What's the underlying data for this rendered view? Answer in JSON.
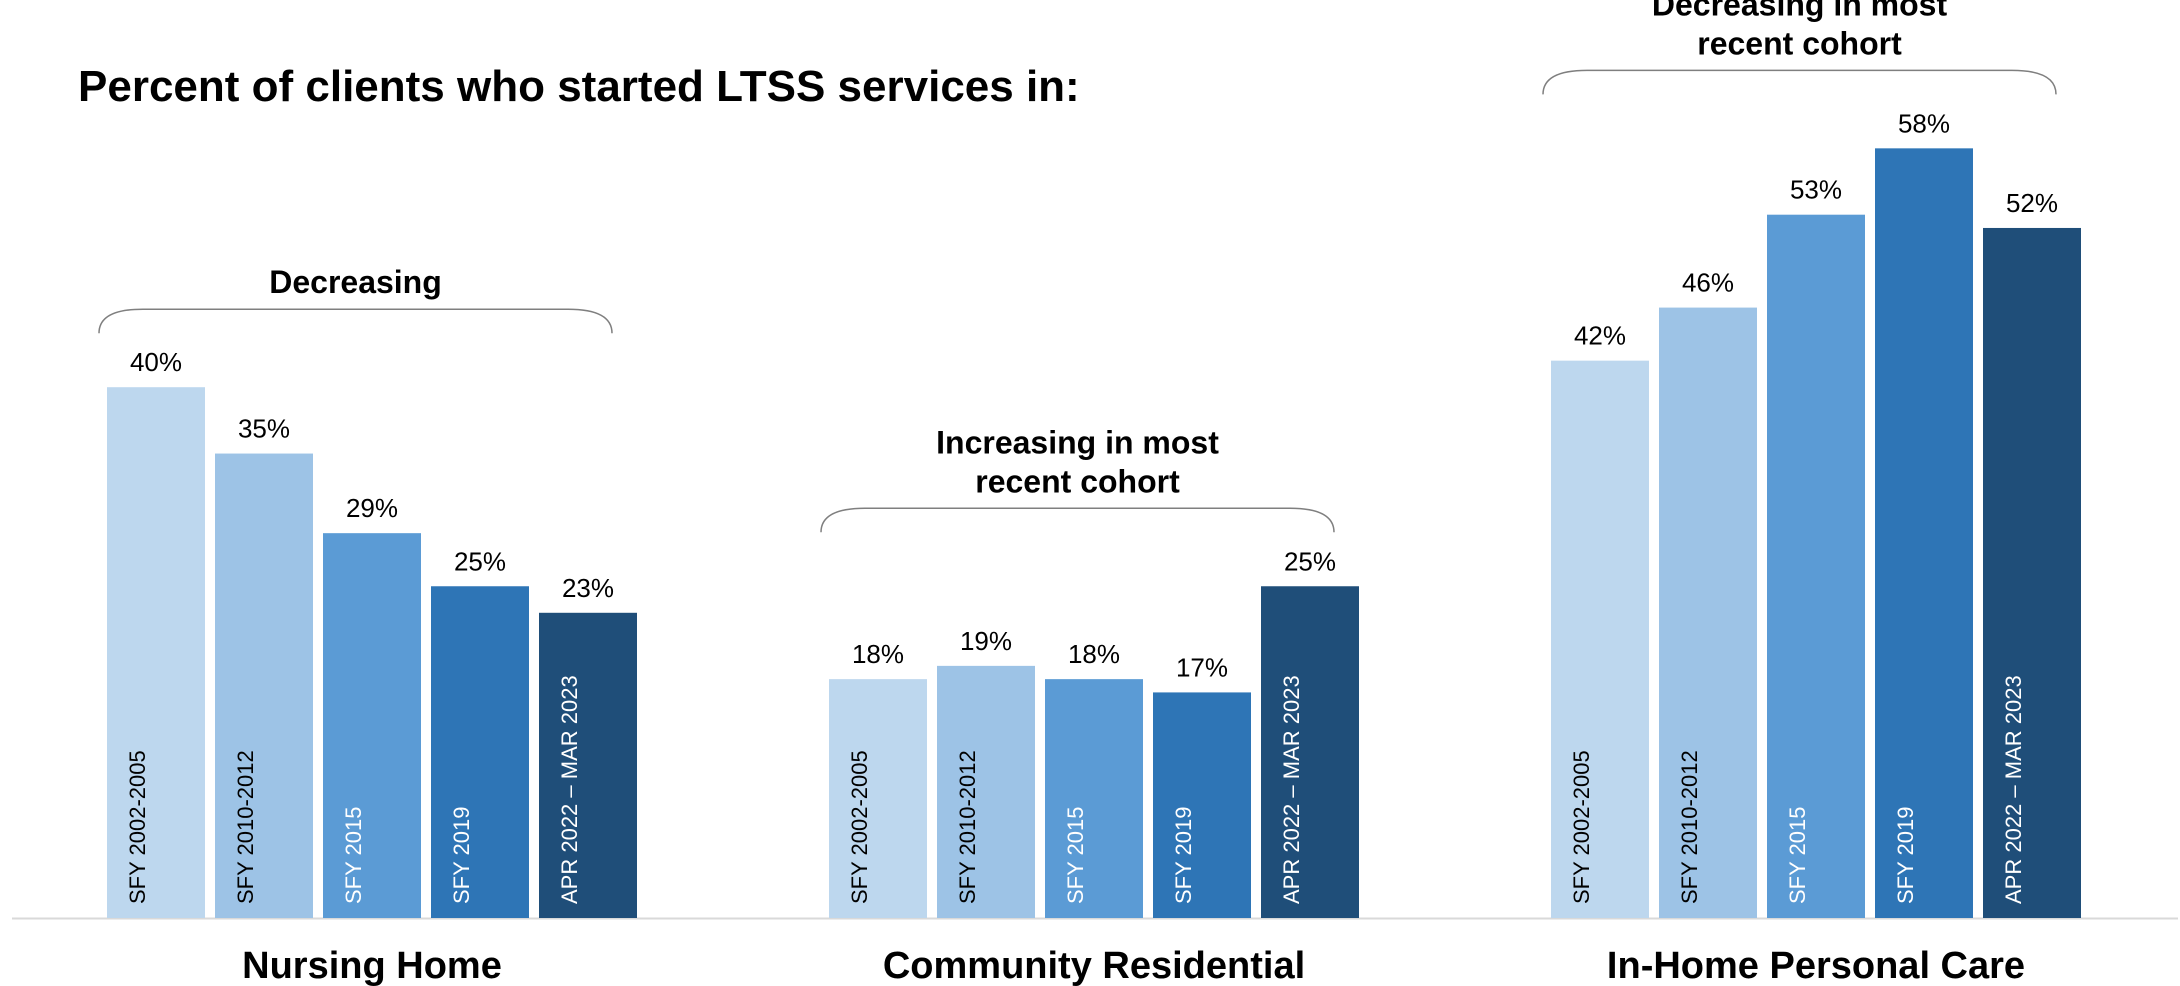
{
  "chart_data": {
    "type": "bar",
    "title": "Percent of clients who started LTSS services in:",
    "categories": [
      "SFY 2002-2005",
      "SFY 2010-2012",
      "SFY 2015",
      "SFY 2019",
      "APR 2022 – MAR 2023"
    ],
    "colors": [
      "#bdd7ee",
      "#9dc3e6",
      "#5b9bd5",
      "#2e75b6",
      "#1f4e79"
    ],
    "category_label_colors": [
      "#000000",
      "#000000",
      "#ffffff",
      "#ffffff",
      "#ffffff"
    ],
    "ylim": [
      0,
      62
    ],
    "groups": [
      {
        "name": "Nursing Home",
        "values": [
          40,
          35,
          29,
          25,
          23
        ],
        "labels": [
          "40%",
          "35%",
          "29%",
          "25%",
          "23%"
        ],
        "annotation": [
          "Decreasing"
        ]
      },
      {
        "name": "Community Residential",
        "values": [
          18,
          19,
          18,
          17,
          25
        ],
        "labels": [
          "18%",
          "19%",
          "18%",
          "17%",
          "25%"
        ],
        "annotation": [
          "Increasing in most",
          "recent cohort"
        ]
      },
      {
        "name": "In-Home Personal Care",
        "values": [
          42,
          46,
          53,
          58,
          52
        ],
        "labels": [
          "42%",
          "46%",
          "53%",
          "58%",
          "52%"
        ],
        "annotation": [
          "Decreasing in most",
          "recent cohort"
        ]
      }
    ]
  }
}
